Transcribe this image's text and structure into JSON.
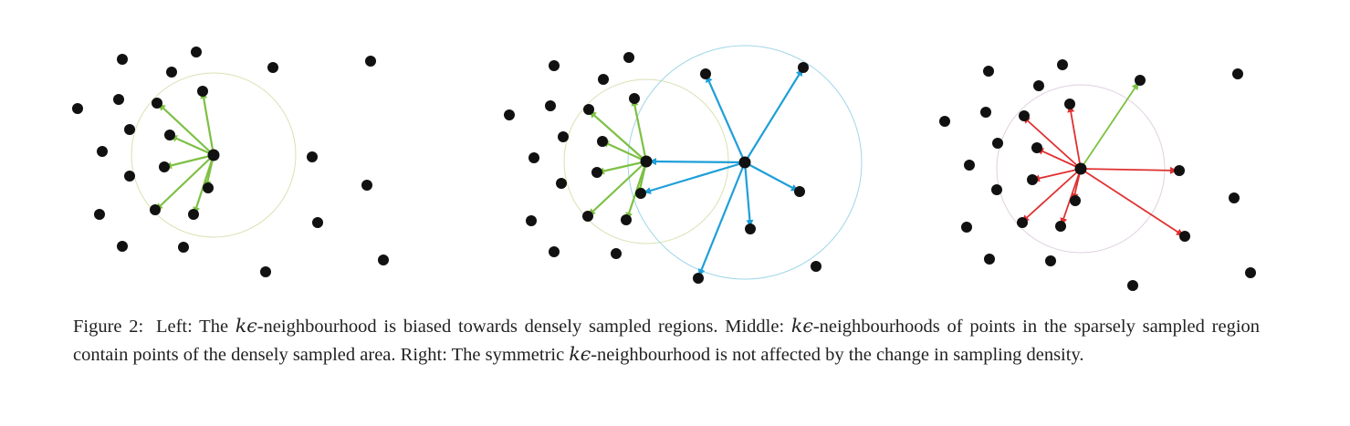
{
  "panels": [
    {
      "id": "left",
      "ring_color": "#d6e3b3",
      "arrow_color": "#7dc043"
    },
    {
      "id": "middle",
      "rings": [
        {
          "color": "#d6e3b3"
        },
        {
          "color": "#9fd6e8"
        }
      ],
      "arrow_colors": [
        "#7dc043",
        "#1e9fd8"
      ]
    },
    {
      "id": "right",
      "ring_color": "#e0d0e0",
      "arrow_color": "#e03030"
    }
  ],
  "caption": {
    "label": "Figure 2:",
    "sentences": [
      {
        "pre": "Left: The ",
        "sym": "kϵ",
        "post": "-neighbourhood is biased towards densely sampled regions."
      },
      {
        "pre": "Middle: ",
        "sym": "kϵ",
        "post": "-neighbourhoods of points in the sparsely sampled region contain points of the densely sampled area."
      },
      {
        "pre": "Right: The symmetric ",
        "sym": "kϵ",
        "post": "-neighbourhood is not affected by the change in sampling density."
      }
    ]
  }
}
